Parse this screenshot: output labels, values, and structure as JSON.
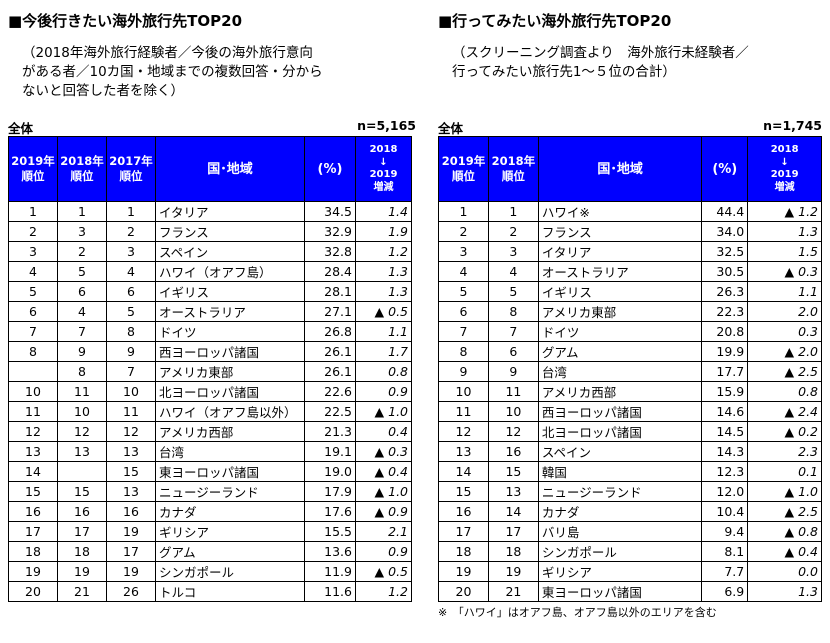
{
  "left": {
    "title": "■今後行きたい海外旅行先TOP20",
    "subtitle": "（2018年海外旅行経験者／今後の海外旅行意向\nがある者／10カ国・地域までの複数回答・分から\nないと回答した者を除く）",
    "segment": "全体",
    "n": "n=5,165",
    "headers": {
      "rank2019": "2019年\n順位",
      "rank2018": "2018年\n順位",
      "rank2017": "2017年\n順位",
      "country": "国･地域",
      "pct": "(%)",
      "change": "2018\n↓\n2019\n増減"
    },
    "rows": [
      {
        "r19": "1",
        "r18": "1",
        "r17": "1",
        "name": "イタリア",
        "pct": "34.5",
        "chg": "1.4"
      },
      {
        "r19": "2",
        "r18": "3",
        "r17": "2",
        "name": "フランス",
        "pct": "32.9",
        "chg": "1.9"
      },
      {
        "r19": "3",
        "r18": "2",
        "r17": "3",
        "name": "スペイン",
        "pct": "32.8",
        "chg": "1.2"
      },
      {
        "r19": "4",
        "r18": "5",
        "r17": "4",
        "name": "ハワイ（オアフ島）",
        "pct": "28.4",
        "chg": "1.3"
      },
      {
        "r19": "5",
        "r18": "6",
        "r17": "6",
        "name": "イギリス",
        "pct": "28.1",
        "chg": "1.3"
      },
      {
        "r19": "6",
        "r18": "4",
        "r17": "5",
        "name": "オーストラリア",
        "pct": "27.1",
        "chg": "▲ 0.5"
      },
      {
        "r19": "7",
        "r18": "7",
        "r17": "8",
        "name": "ドイツ",
        "pct": "26.8",
        "chg": "1.1"
      },
      {
        "r19": "8",
        "r18": "9",
        "r17": "9",
        "name": "西ヨーロッパ諸国",
        "pct": "26.1",
        "chg": "1.7"
      },
      {
        "r19": "",
        "r18": "8",
        "r17": "7",
        "name": "アメリカ東部",
        "pct": "26.1",
        "chg": "0.8"
      },
      {
        "r19": "10",
        "r18": "11",
        "r17": "10",
        "name": "北ヨーロッパ諸国",
        "pct": "22.6",
        "chg": "0.9"
      },
      {
        "r19": "11",
        "r18": "10",
        "r17": "11",
        "name": "ハワイ（オアフ島以外）",
        "pct": "22.5",
        "chg": "▲ 1.0"
      },
      {
        "r19": "12",
        "r18": "12",
        "r17": "12",
        "name": "アメリカ西部",
        "pct": "21.3",
        "chg": "0.4"
      },
      {
        "r19": "13",
        "r18": "13",
        "r17": "13",
        "name": "台湾",
        "pct": "19.1",
        "chg": "▲ 0.3"
      },
      {
        "r19": "14",
        "r18": "",
        "r17": "15",
        "name": "東ヨーロッパ諸国",
        "pct": "19.0",
        "chg": "▲ 0.4"
      },
      {
        "r19": "15",
        "r18": "15",
        "r17": "13",
        "name": "ニュージーランド",
        "pct": "17.9",
        "chg": "▲ 1.0"
      },
      {
        "r19": "16",
        "r18": "16",
        "r17": "16",
        "name": "カナダ",
        "pct": "17.6",
        "chg": "▲ 0.9"
      },
      {
        "r19": "17",
        "r18": "17",
        "r17": "19",
        "name": "ギリシア",
        "pct": "15.5",
        "chg": "2.1"
      },
      {
        "r19": "18",
        "r18": "18",
        "r17": "17",
        "name": "グアム",
        "pct": "13.6",
        "chg": "0.9"
      },
      {
        "r19": "19",
        "r18": "19",
        "r17": "19",
        "name": "シンガポール",
        "pct": "11.9",
        "chg": "▲ 0.5"
      },
      {
        "r19": "20",
        "r18": "21",
        "r17": "26",
        "name": "トルコ",
        "pct": "11.6",
        "chg": "1.2"
      }
    ]
  },
  "right": {
    "title": "■行ってみたい海外旅行先TOP20",
    "subtitle": "（スクリーニング調査より　海外旅行未経験者／\n行ってみたい旅行先1～５位の合計）",
    "segment": "全体",
    "n": "n=1,745",
    "headers": {
      "rank2019": "2019年\n順位",
      "rank2018": "2018年\n順位",
      "country": "国･地域",
      "pct": "(%)",
      "change": "2018\n↓\n2019\n増減"
    },
    "rows": [
      {
        "r19": "1",
        "r18": "1",
        "name": "ハワイ※",
        "pct": "44.4",
        "chg": "▲ 1.2"
      },
      {
        "r19": "2",
        "r18": "2",
        "name": "フランス",
        "pct": "34.0",
        "chg": "1.3"
      },
      {
        "r19": "3",
        "r18": "3",
        "name": "イタリア",
        "pct": "32.5",
        "chg": "1.5"
      },
      {
        "r19": "4",
        "r18": "4",
        "name": "オーストラリア",
        "pct": "30.5",
        "chg": "▲ 0.3"
      },
      {
        "r19": "5",
        "r18": "5",
        "name": "イギリス",
        "pct": "26.3",
        "chg": "1.1"
      },
      {
        "r19": "6",
        "r18": "8",
        "name": "アメリカ東部",
        "pct": "22.3",
        "chg": "2.0"
      },
      {
        "r19": "7",
        "r18": "7",
        "name": "ドイツ",
        "pct": "20.8",
        "chg": "0.3"
      },
      {
        "r19": "8",
        "r18": "6",
        "name": "グアム",
        "pct": "19.9",
        "chg": "▲ 2.0"
      },
      {
        "r19": "9",
        "r18": "9",
        "name": "台湾",
        "pct": "17.7",
        "chg": "▲ 2.5"
      },
      {
        "r19": "10",
        "r18": "11",
        "name": "アメリカ西部",
        "pct": "15.9",
        "chg": "0.8"
      },
      {
        "r19": "11",
        "r18": "10",
        "name": "西ヨーロッパ諸国",
        "pct": "14.6",
        "chg": "▲ 2.4"
      },
      {
        "r19": "12",
        "r18": "12",
        "name": "北ヨーロッパ諸国",
        "pct": "14.5",
        "chg": "▲ 0.2"
      },
      {
        "r19": "13",
        "r18": "16",
        "name": "スペイン",
        "pct": "14.3",
        "chg": "2.3"
      },
      {
        "r19": "14",
        "r18": "15",
        "name": "韓国",
        "pct": "12.3",
        "chg": "0.1"
      },
      {
        "r19": "15",
        "r18": "13",
        "name": "ニュージーランド",
        "pct": "12.0",
        "chg": "▲ 1.0"
      },
      {
        "r19": "16",
        "r18": "14",
        "name": "カナダ",
        "pct": "10.4",
        "chg": "▲ 2.5"
      },
      {
        "r19": "17",
        "r18": "17",
        "name": "バリ島",
        "pct": "9.4",
        "chg": "▲ 0.8"
      },
      {
        "r19": "18",
        "r18": "18",
        "name": "シンガポール",
        "pct": "8.1",
        "chg": "▲ 0.4"
      },
      {
        "r19": "19",
        "r18": "19",
        "name": "ギリシア",
        "pct": "7.7",
        "chg": "0.0"
      },
      {
        "r19": "20",
        "r18": "21",
        "name": "東ヨーロッパ諸国",
        "pct": "6.9",
        "chg": "1.3"
      }
    ],
    "note": "※　「ハワイ」はオアフ島、オアフ島以外のエリアを含む"
  }
}
